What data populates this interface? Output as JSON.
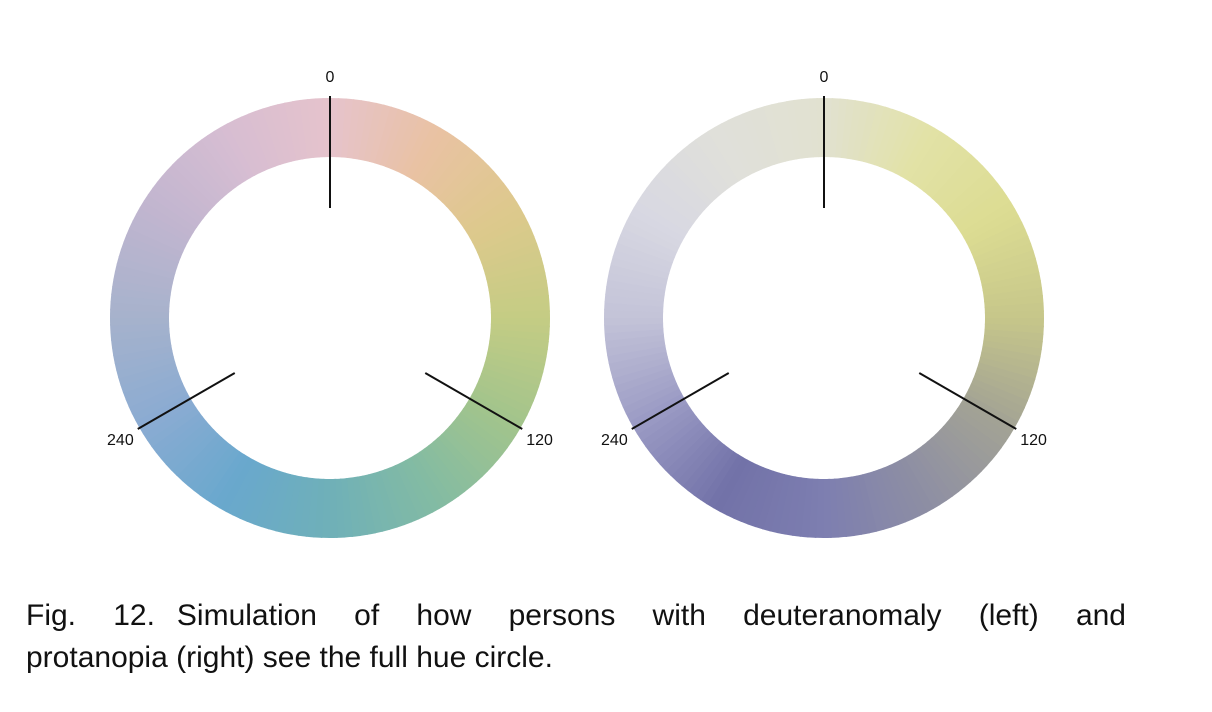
{
  "figure": {
    "panels": [
      {
        "name": "deuteranomaly",
        "tick_labels": [
          "0",
          "120",
          "240"
        ],
        "ring_colors": [
          {
            "hue": 0,
            "color": "#e6c3cc"
          },
          {
            "hue": 30,
            "color": "#e9c2a3"
          },
          {
            "hue": 60,
            "color": "#ddc98c"
          },
          {
            "hue": 90,
            "color": "#c4cc84"
          },
          {
            "hue": 120,
            "color": "#a2c48c"
          },
          {
            "hue": 150,
            "color": "#83bba3"
          },
          {
            "hue": 180,
            "color": "#6fb0b8"
          },
          {
            "hue": 210,
            "color": "#69a8cd"
          },
          {
            "hue": 240,
            "color": "#8aabd2"
          },
          {
            "hue": 270,
            "color": "#a6b2cc"
          },
          {
            "hue": 300,
            "color": "#c0b5cf"
          },
          {
            "hue": 330,
            "color": "#d6bdd2"
          }
        ]
      },
      {
        "name": "protanopia",
        "tick_labels": [
          "0",
          "120",
          "240"
        ],
        "ring_colors": [
          {
            "hue": 0,
            "color": "#e1e1d0"
          },
          {
            "hue": 30,
            "color": "#e2e2a6"
          },
          {
            "hue": 60,
            "color": "#dcdc92"
          },
          {
            "hue": 90,
            "color": "#c6c68a"
          },
          {
            "hue": 120,
            "color": "#a3a394"
          },
          {
            "hue": 150,
            "color": "#8e8fa3"
          },
          {
            "hue": 180,
            "color": "#7d7eb0"
          },
          {
            "hue": 210,
            "color": "#7272a8"
          },
          {
            "hue": 240,
            "color": "#9a9ac4"
          },
          {
            "hue": 270,
            "color": "#c3c3d8"
          },
          {
            "hue": 300,
            "color": "#d8d8e2"
          },
          {
            "hue": 330,
            "color": "#e0e0da"
          }
        ]
      }
    ]
  },
  "caption": {
    "label": "Fig. 12.",
    "line1": "Simulation of how persons with deuteranomaly (left) and",
    "line2": "protanopia (right) see the full hue circle."
  }
}
